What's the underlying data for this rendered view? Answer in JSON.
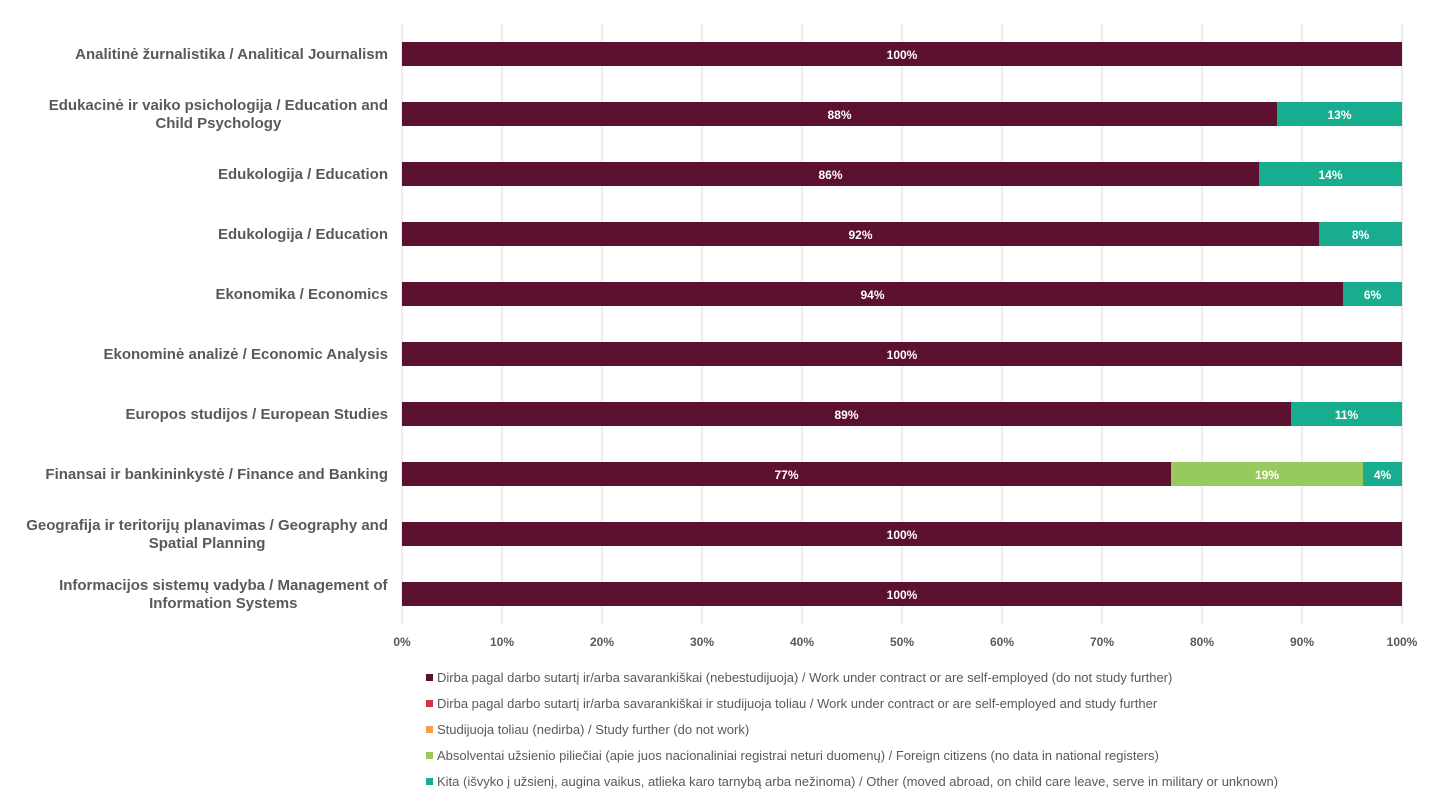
{
  "chart_data": {
    "type": "bar",
    "orientation": "horizontal",
    "stacked": true,
    "xlim": [
      0,
      100
    ],
    "grid": true,
    "legend_position": "bottom",
    "x_ticks": [
      "0%",
      "10%",
      "20%",
      "30%",
      "40%",
      "50%",
      "60%",
      "70%",
      "80%",
      "90%",
      "100%"
    ],
    "categories": [
      [
        "Analitinė žurnalistika / Analitical Journalism"
      ],
      [
        "Edukacinė ir vaiko psichologija / Education and",
        "Child Psychology"
      ],
      [
        "Edukologija / Education"
      ],
      [
        "Edukologija / Education"
      ],
      [
        "Ekonomika / Economics"
      ],
      [
        "Ekonominė analizė / Economic Analysis"
      ],
      [
        "Europos studijos / European Studies"
      ],
      [
        "Finansai ir bankininkystė / Finance and Banking"
      ],
      [
        "Geografija ir teritorijų planavimas / Geography and",
        "Spatial Planning"
      ],
      [
        "Informacijos sistemų vadyba / Management of",
        "Information Systems"
      ]
    ],
    "series": [
      {
        "name": "Dirba pagal darbo sutartį ir/arba savarankiškai (nebestudijuoja) / Work under contract or are self-employed (do not study further)",
        "color": "#5C1131",
        "values": [
          100,
          87.5,
          85.7,
          91.7,
          94.1,
          100,
          88.9,
          76.9,
          100,
          100
        ],
        "labels": [
          "100%",
          "88%",
          "86%",
          "92%",
          "94%",
          "100%",
          "89%",
          "77%",
          "100%",
          "100%"
        ]
      },
      {
        "name": "Dirba pagal darbo sutartį ir/arba savarankiškai  ir studijuoja toliau / Work under contract or are self-employed and study further",
        "color": "#D6304F",
        "values": [
          0,
          0,
          0,
          0,
          0,
          0,
          0,
          0,
          0,
          0
        ],
        "labels": [
          "",
          "",
          "",
          "",
          "",
          "",
          "",
          "",
          "",
          ""
        ]
      },
      {
        "name": "Studijuoja toliau (nedirba) / Study further (do not work)",
        "color": "#F0A04B",
        "values": [
          0,
          0,
          0,
          0,
          0,
          0,
          0,
          0,
          0,
          0
        ],
        "labels": [
          "",
          "",
          "",
          "",
          "",
          "",
          "",
          "",
          "",
          ""
        ]
      },
      {
        "name": "Absolventai užsienio piliečiai (apie juos nacionaliniai registrai neturi duomenų) / Foreign citizens (no data in national registers)",
        "color": "#97C95C",
        "values": [
          0,
          0,
          0,
          0,
          0,
          0,
          0,
          19.2,
          0,
          0
        ],
        "labels": [
          "",
          "",
          "",
          "",
          "",
          "",
          "",
          "19%",
          "",
          ""
        ]
      },
      {
        "name": "Kita (išvyko į užsienį, augina vaikus, atlieka karo tarnybą arba nežinoma) / Other (moved abroad, on child care leave, serve in military or unknown)",
        "color": "#17AD8E",
        "values": [
          0,
          12.5,
          14.3,
          8.3,
          5.9,
          0,
          11.1,
          3.9,
          0,
          0
        ],
        "labels": [
          "",
          "13%",
          "14%",
          "8%",
          "6%",
          "",
          "11%",
          "4%",
          "",
          ""
        ]
      }
    ]
  }
}
